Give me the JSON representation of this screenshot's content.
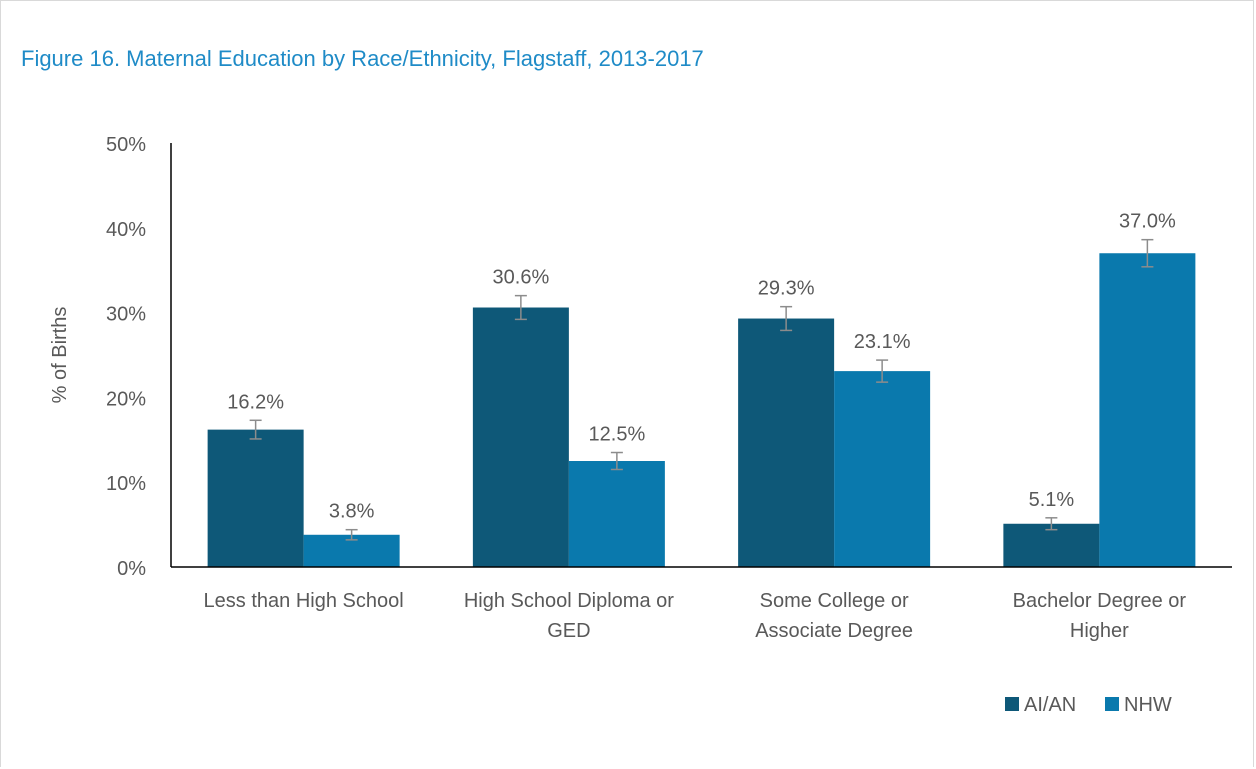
{
  "chart_data": {
    "type": "bar",
    "title": "Figure 16. Maternal Education by Race/Ethnicity, Flagstaff, 2013-2017",
    "ylabel": "% of Births",
    "xlabel": "",
    "ylim": [
      0,
      50
    ],
    "yticks": [
      0,
      10,
      20,
      30,
      40,
      50
    ],
    "ytick_labels": [
      "0%",
      "10%",
      "20%",
      "30%",
      "40%",
      "50%"
    ],
    "categories": [
      "Less than High School",
      "High School Diploma or GED",
      "Some College or Associate Degree",
      "Bachelor Degree or Higher"
    ],
    "category_lines": [
      [
        "Less than High School"
      ],
      [
        "High School Diploma or",
        "GED"
      ],
      [
        "Some College or",
        "Associate Degree"
      ],
      [
        "Bachelor Degree or",
        "Higher"
      ]
    ],
    "series": [
      {
        "name": "AI/AN",
        "color": "#0e5878",
        "values": [
          16.2,
          30.6,
          29.3,
          5.1
        ],
        "labels": [
          "16.2%",
          "30.6%",
          "29.3%",
          "5.1%"
        ],
        "error": [
          1.1,
          1.4,
          1.4,
          0.7
        ]
      },
      {
        "name": "NHW",
        "color": "#0a79ad",
        "values": [
          3.8,
          12.5,
          23.1,
          37.0
        ],
        "labels": [
          "3.8%",
          "12.5%",
          "23.1%",
          "37.0%"
        ],
        "error": [
          0.6,
          1.0,
          1.3,
          1.6
        ]
      }
    ],
    "grid": false,
    "legend_position": "bottom-right",
    "error_bar_color": "#8c8c8c",
    "text_color": "#595959"
  }
}
